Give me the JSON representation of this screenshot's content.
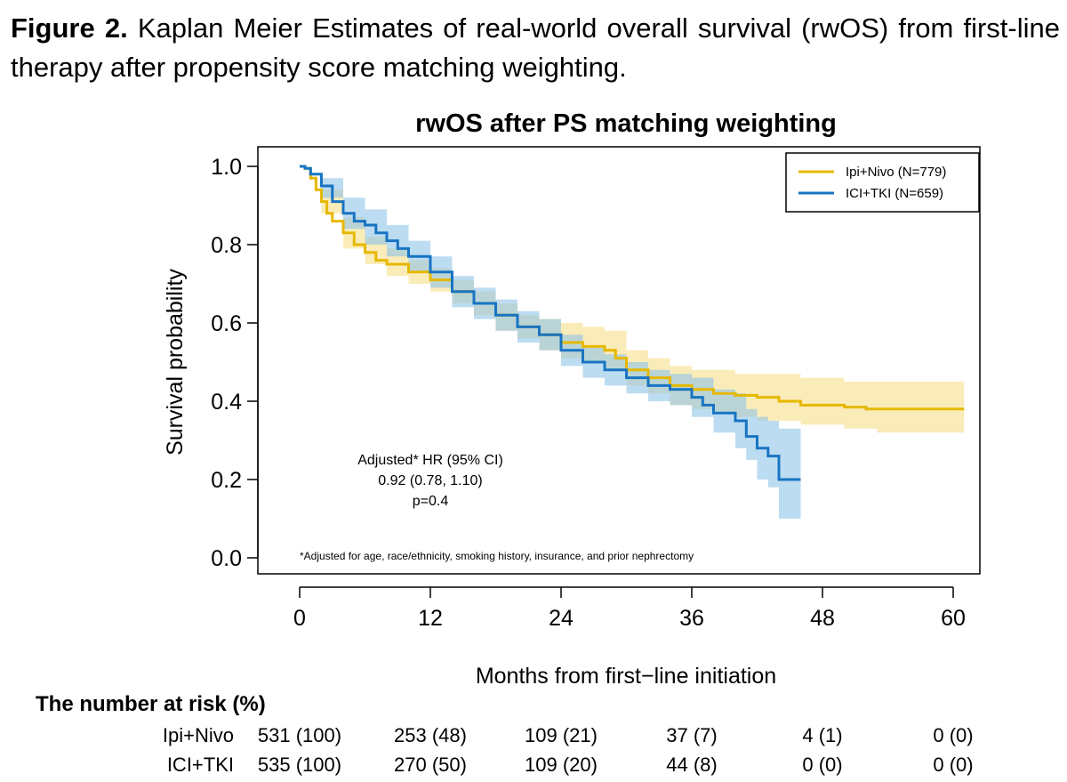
{
  "caption": {
    "label": "Figure 2.",
    "text": " Kaplan Meier Estimates of real-world overall survival (rwOS) from first-line therapy after propensity score matching weighting."
  },
  "chart_data": {
    "type": "line",
    "title": "rwOS after PS matching weighting",
    "xlabel": "Months from first−line initiation",
    "ylabel": "Survival probability",
    "xlim": [
      0,
      61
    ],
    "ylim": [
      0,
      1
    ],
    "x_ticks": [
      "0",
      "12",
      "24",
      "36",
      "48",
      "60"
    ],
    "y_ticks": [
      "0.0",
      "0.2",
      "0.4",
      "0.6",
      "0.8",
      "1.0"
    ],
    "legend_position": "top-right",
    "grid": false,
    "annotation": {
      "hr_label": "Adjusted* HR (95% CI)",
      "hr_value": "0.92 (0.78, 1.10)",
      "p_value": "p=0.4",
      "footnote": "*Adjusted for age, race/ethnicity, smoking history, insurance, and prior nephrectomy"
    },
    "series": [
      {
        "name": "Ipi+Nivo (N=779)",
        "color": "#e6b800",
        "band_color": "#f7e08a",
        "points": [
          [
            0,
            1.0
          ],
          [
            0.5,
            0.995
          ],
          [
            1,
            0.97
          ],
          [
            1.5,
            0.94
          ],
          [
            2,
            0.91
          ],
          [
            2.5,
            0.88
          ],
          [
            3,
            0.86
          ],
          [
            4,
            0.83
          ],
          [
            5,
            0.8
          ],
          [
            6,
            0.78
          ],
          [
            7,
            0.76
          ],
          [
            8,
            0.75
          ],
          [
            10,
            0.73
          ],
          [
            12,
            0.71
          ],
          [
            14,
            0.68
          ],
          [
            16,
            0.65
          ],
          [
            18,
            0.62
          ],
          [
            20,
            0.59
          ],
          [
            22,
            0.57
          ],
          [
            24,
            0.55
          ],
          [
            26,
            0.54
          ],
          [
            28,
            0.53
          ],
          [
            29,
            0.51
          ],
          [
            30,
            0.48
          ],
          [
            32,
            0.46
          ],
          [
            34,
            0.44
          ],
          [
            36,
            0.43
          ],
          [
            38,
            0.42
          ],
          [
            40,
            0.415
          ],
          [
            42,
            0.41
          ],
          [
            44,
            0.4
          ],
          [
            46,
            0.39
          ],
          [
            48,
            0.39
          ],
          [
            50,
            0.385
          ],
          [
            52,
            0.38
          ],
          [
            61,
            0.38
          ]
        ],
        "lower": [
          [
            0,
            1.0
          ],
          [
            2,
            0.88
          ],
          [
            4,
            0.79
          ],
          [
            6,
            0.75
          ],
          [
            8,
            0.72
          ],
          [
            10,
            0.7
          ],
          [
            12,
            0.68
          ],
          [
            14,
            0.65
          ],
          [
            16,
            0.62
          ],
          [
            18,
            0.58
          ],
          [
            20,
            0.56
          ],
          [
            22,
            0.53
          ],
          [
            24,
            0.51
          ],
          [
            26,
            0.5
          ],
          [
            28,
            0.48
          ],
          [
            30,
            0.44
          ],
          [
            32,
            0.42
          ],
          [
            34,
            0.39
          ],
          [
            36,
            0.38
          ],
          [
            38,
            0.37
          ],
          [
            40,
            0.36
          ],
          [
            42,
            0.35
          ],
          [
            46,
            0.34
          ],
          [
            50,
            0.33
          ],
          [
            53,
            0.32
          ],
          [
            61,
            0.32
          ]
        ],
        "upper": [
          [
            0,
            1.0
          ],
          [
            2,
            0.94
          ],
          [
            4,
            0.87
          ],
          [
            6,
            0.82
          ],
          [
            8,
            0.79
          ],
          [
            10,
            0.76
          ],
          [
            12,
            0.74
          ],
          [
            14,
            0.71
          ],
          [
            16,
            0.68
          ],
          [
            18,
            0.65
          ],
          [
            20,
            0.62
          ],
          [
            22,
            0.61
          ],
          [
            24,
            0.6
          ],
          [
            26,
            0.59
          ],
          [
            28,
            0.58
          ],
          [
            30,
            0.53
          ],
          [
            32,
            0.51
          ],
          [
            34,
            0.49
          ],
          [
            36,
            0.48
          ],
          [
            38,
            0.48
          ],
          [
            40,
            0.47
          ],
          [
            42,
            0.47
          ],
          [
            46,
            0.46
          ],
          [
            50,
            0.45
          ],
          [
            53,
            0.45
          ],
          [
            61,
            0.45
          ]
        ]
      },
      {
        "name": "ICI+TKI (N=659)",
        "color": "#1874c2",
        "band_color": "#90c4ea",
        "points": [
          [
            0,
            1.0
          ],
          [
            0.5,
            0.995
          ],
          [
            1,
            0.98
          ],
          [
            2,
            0.95
          ],
          [
            3,
            0.91
          ],
          [
            4,
            0.88
          ],
          [
            5,
            0.86
          ],
          [
            6,
            0.85
          ],
          [
            7,
            0.83
          ],
          [
            8,
            0.81
          ],
          [
            9,
            0.79
          ],
          [
            10,
            0.77
          ],
          [
            12,
            0.73
          ],
          [
            14,
            0.68
          ],
          [
            16,
            0.65
          ],
          [
            18,
            0.62
          ],
          [
            20,
            0.59
          ],
          [
            22,
            0.57
          ],
          [
            24,
            0.53
          ],
          [
            26,
            0.5
          ],
          [
            28,
            0.48
          ],
          [
            30,
            0.46
          ],
          [
            32,
            0.44
          ],
          [
            34,
            0.43
          ],
          [
            36,
            0.41
          ],
          [
            37,
            0.39
          ],
          [
            38,
            0.37
          ],
          [
            40,
            0.35
          ],
          [
            41,
            0.31
          ],
          [
            42,
            0.28
          ],
          [
            43,
            0.26
          ],
          [
            44,
            0.2
          ],
          [
            46,
            0.2
          ]
        ],
        "lower": [
          [
            0,
            1.0
          ],
          [
            2,
            0.92
          ],
          [
            4,
            0.84
          ],
          [
            6,
            0.8
          ],
          [
            8,
            0.77
          ],
          [
            10,
            0.73
          ],
          [
            12,
            0.69
          ],
          [
            14,
            0.64
          ],
          [
            16,
            0.61
          ],
          [
            18,
            0.58
          ],
          [
            20,
            0.55
          ],
          [
            22,
            0.53
          ],
          [
            24,
            0.49
          ],
          [
            26,
            0.46
          ],
          [
            28,
            0.44
          ],
          [
            30,
            0.42
          ],
          [
            32,
            0.4
          ],
          [
            34,
            0.39
          ],
          [
            36,
            0.36
          ],
          [
            38,
            0.32
          ],
          [
            40,
            0.28
          ],
          [
            41,
            0.25
          ],
          [
            42,
            0.2
          ],
          [
            43,
            0.18
          ],
          [
            44,
            0.1
          ],
          [
            46,
            0.1
          ]
        ],
        "upper": [
          [
            0,
            1.0
          ],
          [
            2,
            0.97
          ],
          [
            4,
            0.92
          ],
          [
            6,
            0.89
          ],
          [
            8,
            0.85
          ],
          [
            10,
            0.81
          ],
          [
            12,
            0.77
          ],
          [
            14,
            0.72
          ],
          [
            16,
            0.69
          ],
          [
            18,
            0.66
          ],
          [
            20,
            0.63
          ],
          [
            22,
            0.61
          ],
          [
            24,
            0.57
          ],
          [
            26,
            0.54
          ],
          [
            28,
            0.52
          ],
          [
            30,
            0.5
          ],
          [
            32,
            0.48
          ],
          [
            34,
            0.47
          ],
          [
            36,
            0.46
          ],
          [
            38,
            0.43
          ],
          [
            40,
            0.42
          ],
          [
            41,
            0.38
          ],
          [
            42,
            0.36
          ],
          [
            43,
            0.35
          ],
          [
            44,
            0.33
          ],
          [
            46,
            0.33
          ]
        ]
      }
    ]
  },
  "risk_table": {
    "title": "The number at risk (%)",
    "rows": [
      {
        "label": "Ipi+Nivo",
        "values": [
          "531 (100)",
          "253 (48)",
          "109 (21)",
          "37 (7)",
          "4 (1)",
          "0 (0)"
        ]
      },
      {
        "label": "ICI+TKI",
        "values": [
          "535 (100)",
          "270 (50)",
          "109 (20)",
          "44 (8)",
          "0 (0)",
          "0 (0)"
        ]
      }
    ]
  }
}
